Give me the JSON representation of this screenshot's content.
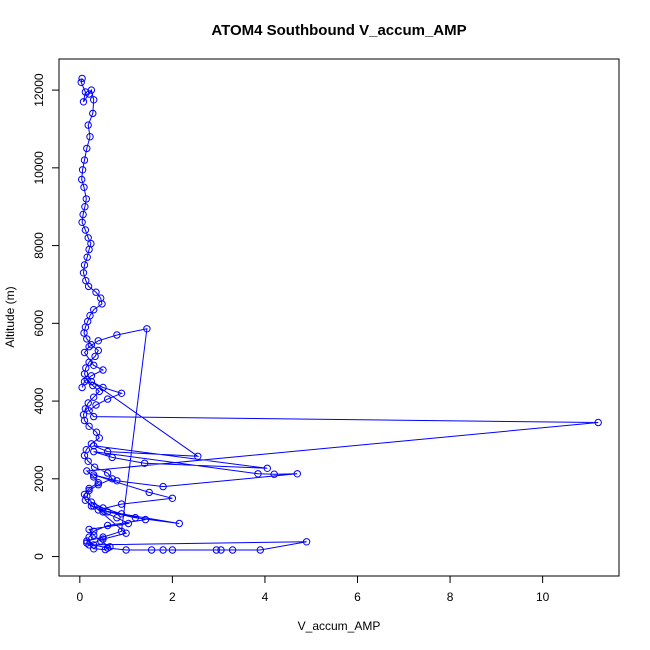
{
  "chart_data": {
    "type": "line",
    "title": "ATOM4 Southbound V_accum_AMP",
    "xlabel": "V_accum_AMP",
    "ylabel": "Altitude (m)",
    "xlim": [
      -0.45,
      11.65
    ],
    "ylim": [
      -500,
      12800
    ],
    "xticks": [
      0,
      2,
      4,
      6,
      8,
      10
    ],
    "yticks": [
      0,
      2000,
      4000,
      6000,
      8000,
      10000,
      12000
    ],
    "grid": false,
    "legend": "none",
    "color": "#0000ff",
    "marker": "open-circle",
    "series": [
      {
        "x": [
          0.05,
          0.03,
          0.12,
          0.08,
          0.2,
          0.25,
          0.3,
          0.28,
          0.18,
          0.22,
          0.15,
          0.1,
          0.06,
          0.04,
          0.09,
          0.14,
          0.11,
          0.07,
          0.05,
          0.12,
          0.18,
          0.24,
          0.2,
          0.16,
          0.1,
          0.08,
          0.13,
          0.19,
          0.35,
          0.45,
          0.48,
          0.3,
          0.22,
          0.17,
          0.12,
          0.09,
          0.15,
          0.25,
          0.4,
          0.33,
          0.2,
          0.13,
          0.1,
          0.16,
          0.28,
          0.42,
          0.3,
          0.18,
          0.12,
          0.08,
          0.1,
          0.2,
          0.36,
          0.42,
          0.25,
          0.14,
          0.1,
          0.18,
          0.32,
          0.6,
          0.7,
          0.4,
          0.2,
          0.15,
          0.25,
          0.5,
          0.9,
          1.42,
          0.6,
          0.3,
          0.2,
          0.15,
          0.3,
          0.55,
          0.65,
          0.45,
          0.3,
          0.2,
          1.05,
          0.8,
          0.5,
          0.25,
          0.12,
          0.1,
          0.2,
          0.4,
          0.3,
          0.15,
          11.2,
          0.3,
          0.2,
          0.35,
          0.6,
          0.9,
          0.5,
          0.25,
          2.55,
          0.6,
          0.3,
          4.05,
          1.4,
          0.7,
          0.3,
          3.85,
          4.2,
          4.7,
          1.8,
          0.8,
          0.3,
          1.5,
          2.0,
          0.9,
          0.4,
          2.15,
          1.2,
          0.6,
          0.3,
          1.0,
          0.5,
          0.2,
          4.9,
          3.9,
          3.3,
          3.05,
          2.95,
          1.55,
          1.8,
          2.0,
          1.0,
          0.6,
          0.3,
          0.15,
          0.5,
          0.9,
          1.45,
          0.8,
          0.4,
          0.2,
          0.1,
          0.3,
          0.5,
          0.25,
          0.1,
          0.05
        ],
        "y": [
          12300,
          12200,
          11950,
          11700,
          11900,
          12000,
          11750,
          11400,
          11100,
          10800,
          10500,
          10200,
          9950,
          9700,
          9500,
          9200,
          9000,
          8800,
          8600,
          8400,
          8200,
          8050,
          7900,
          7700,
          7500,
          7300,
          7100,
          6950,
          6800,
          6650,
          6500,
          6350,
          6200,
          6050,
          5900,
          5750,
          5600,
          5450,
          5300,
          5150,
          5000,
          4850,
          4700,
          4550,
          4400,
          4250,
          4100,
          3950,
          3800,
          3650,
          3500,
          3350,
          3200,
          3050,
          2900,
          2750,
          2600,
          2450,
          2300,
          2150,
          2000,
          1850,
          1700,
          1550,
          1400,
          1250,
          1100,
          950,
          800,
          650,
          500,
          350,
          200,
          180,
          250,
          400,
          550,
          700,
          850,
          1000,
          1150,
          1300,
          1450,
          1600,
          1750,
          1900,
          2050,
          2200,
          3450,
          3600,
          3750,
          3900,
          4050,
          4200,
          4350,
          4500,
          2580,
          2700,
          2850,
          2270,
          2400,
          2550,
          2700,
          2130,
          2120,
          2130,
          1800,
          1950,
          2100,
          1650,
          1500,
          1350,
          1200,
          850,
          1000,
          1150,
          1300,
          600,
          450,
          300,
          380,
          170,
          170,
          170,
          170,
          170,
          170,
          170,
          170,
          220,
          300,
          400,
          500,
          650,
          5860,
          5700,
          5550,
          5400,
          5250,
          4920,
          4800,
          4650,
          4500,
          4350
        ]
      }
    ]
  }
}
